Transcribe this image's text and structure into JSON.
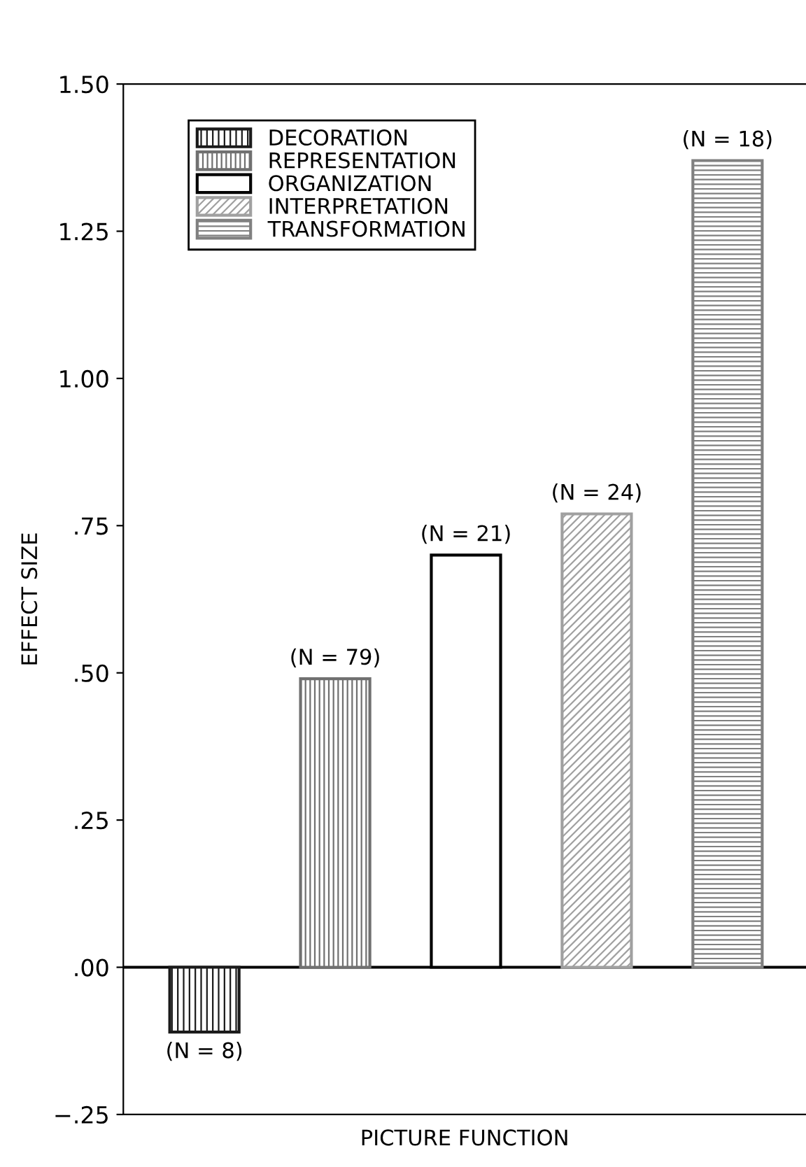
{
  "chart_data": {
    "type": "bar",
    "xlabel": "PICTURE FUNCTION",
    "ylabel": "EFFECT SIZE",
    "categories": [
      null,
      null,
      null,
      null,
      null
    ],
    "series": [
      {
        "name": "DECORATION",
        "color": "#1a1a1a",
        "values": [
          -0.11,
          null,
          null,
          null,
          null
        ]
      },
      {
        "name": "REPRESENTATION",
        "color": "#707070",
        "values": [
          null,
          0.49,
          null,
          null,
          null
        ]
      },
      {
        "name": "ORGANIZATION",
        "color": "#ffffff",
        "values": [
          null,
          null,
          0.7,
          null,
          null
        ]
      },
      {
        "name": "INTERPRETATION",
        "color": "#a0a0a0",
        "values": [
          null,
          null,
          null,
          0.77,
          null
        ]
      },
      {
        "name": "TRANSFORMATION",
        "color": "#808080",
        "values": [
          null,
          null,
          null,
          null,
          1.37
        ]
      }
    ],
    "annotations": [
      "(N = 8)",
      "(N = 79)",
      "(N = 21)",
      "(N = 24)",
      "(N = 18)"
    ],
    "ylim": [
      -0.25,
      1.5
    ],
    "yticks": [
      {
        "value": -0.25,
        "label": "−.25"
      },
      {
        "value": 0,
        "label": ".00"
      },
      {
        "value": 0.25,
        "label": ".25"
      },
      {
        "value": 0.5,
        "label": ".50"
      },
      {
        "value": 0.75,
        "label": ".75"
      },
      {
        "value": 1.0,
        "label": "1.00"
      },
      {
        "value": 1.25,
        "label": "1.25"
      },
      {
        "value": 1.5,
        "label": "1.50"
      }
    ],
    "ref_lines": [
      {
        "axis": "y",
        "value": 0,
        "color": "#000000"
      }
    ],
    "legend": "top left",
    "grid": false
  }
}
